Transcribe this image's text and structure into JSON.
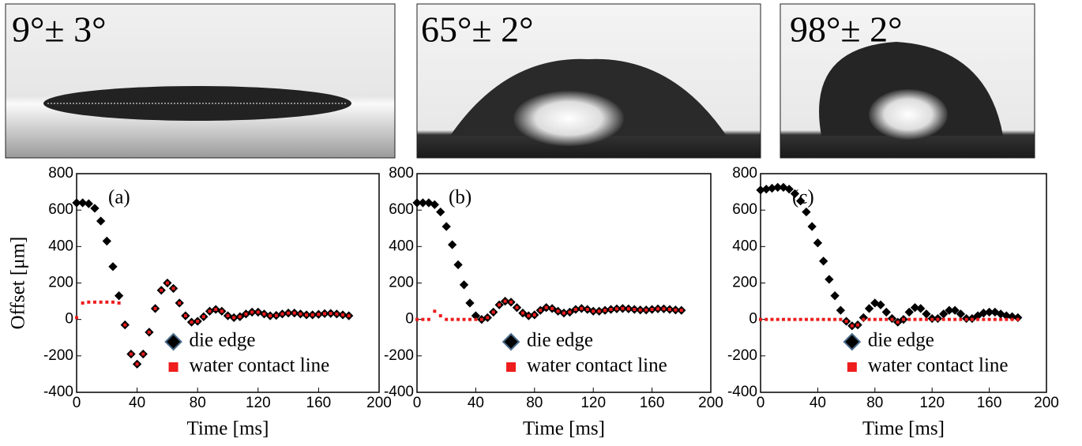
{
  "photos": [
    {
      "label": "9°± 3°"
    },
    {
      "label": "65°± 2°"
    },
    {
      "label": "98°± 2°"
    }
  ],
  "chart_data": [
    {
      "type": "scatter",
      "panel_label": "(a)",
      "x_label": "Time [ms]",
      "y_label": "Offset [μm]",
      "legend": "lower-right",
      "x": [
        0,
        4,
        8,
        12,
        16,
        20,
        24,
        28,
        32,
        36,
        40,
        44,
        48,
        52,
        56,
        60,
        64,
        68,
        72,
        76,
        80,
        84,
        88,
        92,
        96,
        100,
        104,
        108,
        112,
        116,
        120,
        124,
        128,
        132,
        136,
        140,
        144,
        148,
        152,
        156,
        160,
        164,
        168,
        172,
        176,
        180
      ],
      "series": [
        {
          "name": "die edge",
          "color": "#000000",
          "values": [
            640,
            640,
            635,
            610,
            540,
            430,
            290,
            130,
            -30,
            -190,
            -245,
            -190,
            -70,
            60,
            160,
            200,
            170,
            90,
            20,
            -15,
            -10,
            15,
            45,
            55,
            45,
            20,
            10,
            15,
            30,
            40,
            40,
            30,
            20,
            22,
            30,
            35,
            35,
            30,
            25,
            25,
            28,
            32,
            33,
            30,
            25,
            20
          ]
        },
        {
          "name": "water contact line",
          "color": "#ee1c1c",
          "values": [
            10,
            90,
            95,
            95,
            95,
            95,
            95,
            90,
            -30,
            -190,
            -245,
            -190,
            -70,
            60,
            160,
            200,
            170,
            90,
            20,
            -15,
            -10,
            15,
            45,
            55,
            45,
            20,
            10,
            15,
            30,
            40,
            40,
            30,
            20,
            22,
            30,
            35,
            35,
            30,
            25,
            25,
            28,
            32,
            33,
            30,
            25,
            20
          ]
        }
      ],
      "xlim": [
        0,
        200
      ],
      "ylim": [
        -400,
        800
      ],
      "xticks": [
        0,
        40,
        80,
        120,
        160,
        200
      ],
      "yticks": [
        -400,
        -200,
        0,
        200,
        400,
        600,
        800
      ]
    },
    {
      "type": "scatter",
      "panel_label": "(b)",
      "x_label": "Time [ms]",
      "legend": "lower-right",
      "x": [
        0,
        4,
        8,
        12,
        16,
        20,
        24,
        28,
        32,
        36,
        40,
        44,
        48,
        52,
        56,
        60,
        64,
        68,
        72,
        76,
        80,
        84,
        88,
        92,
        96,
        100,
        104,
        108,
        112,
        116,
        120,
        124,
        128,
        132,
        136,
        140,
        144,
        148,
        152,
        156,
        160,
        164,
        168,
        172,
        176,
        180
      ],
      "series": [
        {
          "name": "die edge",
          "color": "#000000",
          "values": [
            640,
            640,
            640,
            630,
            590,
            510,
            410,
            300,
            190,
            90,
            20,
            0,
            10,
            40,
            80,
            100,
            95,
            65,
            35,
            20,
            25,
            50,
            65,
            60,
            45,
            35,
            40,
            55,
            60,
            55,
            45,
            45,
            50,
            55,
            58,
            60,
            58,
            55,
            52,
            52,
            55,
            58,
            58,
            55,
            52,
            50
          ]
        },
        {
          "name": "water contact line",
          "color": "#ee1c1c",
          "values": [
            0,
            0,
            0,
            45,
            20,
            0,
            0,
            0,
            0,
            0,
            0,
            0,
            10,
            40,
            80,
            100,
            95,
            65,
            35,
            20,
            25,
            50,
            65,
            60,
            45,
            35,
            40,
            55,
            60,
            55,
            45,
            45,
            50,
            55,
            58,
            60,
            58,
            55,
            52,
            52,
            55,
            58,
            58,
            55,
            52,
            50
          ]
        }
      ],
      "xlim": [
        0,
        200
      ],
      "ylim": [
        -400,
        800
      ],
      "xticks": [
        0,
        40,
        80,
        120,
        160,
        200
      ],
      "yticks": [
        -400,
        -200,
        0,
        200,
        400,
        600,
        800
      ]
    },
    {
      "type": "scatter",
      "panel_label": "(c)",
      "x_label": "Time [ms]",
      "legend": "lower-right",
      "x": [
        0,
        4,
        8,
        12,
        16,
        20,
        24,
        28,
        32,
        36,
        40,
        44,
        48,
        52,
        56,
        60,
        64,
        68,
        72,
        76,
        80,
        84,
        88,
        92,
        96,
        100,
        104,
        108,
        112,
        116,
        120,
        124,
        128,
        132,
        136,
        140,
        144,
        148,
        152,
        156,
        160,
        164,
        168,
        172,
        176,
        180
      ],
      "series": [
        {
          "name": "die edge",
          "color": "#000000",
          "values": [
            710,
            715,
            720,
            725,
            725,
            715,
            690,
            650,
            590,
            510,
            420,
            320,
            220,
            130,
            50,
            -10,
            -35,
            -30,
            10,
            60,
            90,
            80,
            40,
            5,
            -15,
            0,
            40,
            65,
            60,
            30,
            5,
            5,
            30,
            50,
            50,
            30,
            5,
            5,
            20,
            35,
            40,
            40,
            30,
            20,
            15,
            10
          ]
        },
        {
          "name": "water contact line",
          "color": "#ee1c1c",
          "values": [
            0,
            0,
            0,
            0,
            0,
            0,
            0,
            0,
            0,
            0,
            0,
            0,
            0,
            0,
            0,
            -10,
            -35,
            -30,
            0,
            0,
            0,
            0,
            0,
            0,
            -15,
            0,
            0,
            0,
            0,
            0,
            0,
            0,
            0,
            0,
            0,
            0,
            0,
            0,
            0,
            0,
            0,
            0,
            0,
            0,
            0,
            0
          ]
        }
      ],
      "xlim": [
        0,
        200
      ],
      "ylim": [
        -400,
        800
      ],
      "xticks": [
        0,
        40,
        80,
        120,
        160,
        200
      ],
      "yticks": [
        -400,
        -200,
        0,
        200,
        400,
        600,
        800
      ]
    }
  ]
}
